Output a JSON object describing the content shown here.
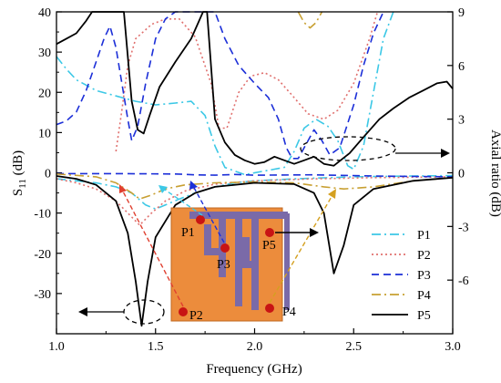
{
  "chart_data": {
    "type": "line",
    "xlabel": "Frequency (GHz)",
    "ylabel_left": "S11 (dB)",
    "ylabel_left_main": "S",
    "ylabel_left_sub": "11",
    "ylabel_left_unit": " (dB)",
    "ylabel_right": "Axial ratio  (dB)",
    "xlim": [
      1.0,
      3.0
    ],
    "ylim_left": [
      -40,
      40
    ],
    "ylim_right": [
      -9,
      9
    ],
    "xticks": [
      "1.0",
      "1.5",
      "2.0",
      "2.5",
      "3.0"
    ],
    "yticks_left": [
      "40",
      "30",
      "20",
      "10",
      "0",
      "-10",
      "-20",
      "-30"
    ],
    "yticks_right": [
      "9",
      "6",
      "3",
      "0",
      "-3",
      "-6"
    ],
    "legend_placement": "bottom-right",
    "grid": false,
    "series": [
      {
        "name": "P1",
        "color": "#3cc8e6",
        "style": "dash-dot",
        "s11": [
          [
            1.0,
            -1.5
          ],
          [
            1.1,
            -2
          ],
          [
            1.2,
            -2.5
          ],
          [
            1.3,
            -3.5
          ],
          [
            1.38,
            -5
          ],
          [
            1.45,
            -8
          ],
          [
            1.5,
            -9
          ],
          [
            1.55,
            -8
          ],
          [
            1.62,
            -6.5
          ],
          [
            1.7,
            -5
          ],
          [
            1.8,
            -3.5
          ],
          [
            1.9,
            -2.5
          ],
          [
            2.0,
            -2
          ],
          [
            2.2,
            -1.5
          ],
          [
            2.5,
            -1
          ],
          [
            2.8,
            -0.8
          ],
          [
            3.0,
            -0.7
          ]
        ],
        "ar": [
          [
            1.0,
            6.5
          ],
          [
            1.05,
            5.8
          ],
          [
            1.1,
            5.2
          ],
          [
            1.2,
            4.6
          ],
          [
            1.3,
            4.3
          ],
          [
            1.4,
            4.0
          ],
          [
            1.5,
            3.8
          ],
          [
            1.6,
            3.9
          ],
          [
            1.68,
            4.0
          ],
          [
            1.75,
            3.2
          ],
          [
            1.8,
            1.5
          ],
          [
            1.85,
            0.3
          ],
          [
            1.95,
            -0.1
          ],
          [
            2.05,
            0.1
          ],
          [
            2.15,
            0.3
          ],
          [
            2.2,
            1.2
          ],
          [
            2.25,
            2.5
          ],
          [
            2.31,
            3.0
          ],
          [
            2.37,
            2.6
          ],
          [
            2.42,
            1.8
          ],
          [
            2.47,
            0.4
          ],
          [
            2.5,
            0.2
          ],
          [
            2.55,
            1.5
          ],
          [
            2.6,
            4.5
          ],
          [
            2.65,
            7.5
          ],
          [
            2.7,
            9
          ]
        ]
      },
      {
        "name": "P2",
        "color": "#e0706e",
        "style": "dot",
        "s11": [
          [
            1.0,
            -1.5
          ],
          [
            1.1,
            -2.5
          ],
          [
            1.2,
            -4
          ],
          [
            1.3,
            -7
          ],
          [
            1.38,
            -11
          ],
          [
            1.42,
            -13
          ],
          [
            1.48,
            -10
          ],
          [
            1.55,
            -7
          ],
          [
            1.65,
            -4.5
          ],
          [
            1.8,
            -2.8
          ],
          [
            2.0,
            -2
          ],
          [
            2.3,
            -1.5
          ],
          [
            2.6,
            -1.2
          ],
          [
            3.0,
            -1
          ]
        ],
        "ar": [
          [
            1.3,
            1.2
          ],
          [
            1.33,
            3.5
          ],
          [
            1.36,
            6.0
          ],
          [
            1.4,
            7.5
          ],
          [
            1.48,
            8.3
          ],
          [
            1.55,
            8.6
          ],
          [
            1.62,
            8.6
          ],
          [
            1.7,
            7.6
          ],
          [
            1.78,
            5.0
          ],
          [
            1.82,
            2.5
          ],
          [
            1.86,
            2.5
          ],
          [
            1.92,
            4.5
          ],
          [
            1.98,
            5.4
          ],
          [
            2.05,
            5.6
          ],
          [
            2.12,
            5.2
          ],
          [
            2.2,
            4.2
          ],
          [
            2.27,
            3.3
          ],
          [
            2.35,
            3.0
          ],
          [
            2.42,
            3.5
          ],
          [
            2.5,
            5.0
          ],
          [
            2.58,
            7.5
          ],
          [
            2.62,
            9
          ]
        ]
      },
      {
        "name": "P3",
        "color": "#1c2fd8",
        "style": "dash",
        "s11": [
          [
            1.0,
            -0.2
          ],
          [
            1.3,
            -0.2
          ],
          [
            1.6,
            -0.3
          ],
          [
            1.7,
            -0.5
          ],
          [
            1.8,
            -0.6
          ],
          [
            1.9,
            -0.4
          ],
          [
            2.0,
            -0.6
          ],
          [
            2.3,
            -0.5
          ],
          [
            2.6,
            -0.8
          ],
          [
            2.8,
            -0.9
          ],
          [
            3.0,
            -1
          ]
        ],
        "ar": [
          [
            1.0,
            2.7
          ],
          [
            1.05,
            2.9
          ],
          [
            1.1,
            3.4
          ],
          [
            1.15,
            4.6
          ],
          [
            1.2,
            6.2
          ],
          [
            1.24,
            7.5
          ],
          [
            1.27,
            8.2
          ],
          [
            1.3,
            7.0
          ],
          [
            1.33,
            5.0
          ],
          [
            1.36,
            3.0
          ],
          [
            1.38,
            1.8
          ],
          [
            1.41,
            2.6
          ],
          [
            1.45,
            5.0
          ],
          [
            1.5,
            7.5
          ],
          [
            1.55,
            8.6
          ],
          [
            1.6,
            9
          ],
          [
            1.8,
            9
          ],
          [
            1.85,
            7.5
          ],
          [
            1.92,
            6.0
          ],
          [
            2.0,
            5.0
          ],
          [
            2.07,
            4.2
          ],
          [
            2.12,
            3.0
          ],
          [
            2.16,
            1.4
          ],
          [
            2.19,
            0.8
          ],
          [
            2.22,
            0.8
          ],
          [
            2.27,
            1.8
          ],
          [
            2.3,
            2.4
          ],
          [
            2.34,
            1.8
          ],
          [
            2.38,
            1.0
          ],
          [
            2.43,
            1.4
          ],
          [
            2.5,
            3.8
          ],
          [
            2.55,
            6.0
          ],
          [
            2.6,
            7.8
          ],
          [
            2.65,
            9
          ]
        ]
      },
      {
        "name": "P4",
        "color": "#c8a032",
        "style": "dash-dot",
        "s11": [
          [
            1.0,
            -0.3
          ],
          [
            1.2,
            -1
          ],
          [
            1.3,
            -2.5
          ],
          [
            1.38,
            -5
          ],
          [
            1.42,
            -6.5
          ],
          [
            1.48,
            -5.5
          ],
          [
            1.55,
            -4
          ],
          [
            1.65,
            -3
          ],
          [
            1.8,
            -2.5
          ],
          [
            2.0,
            -2.3
          ],
          [
            2.2,
            -2.5
          ],
          [
            2.35,
            -3.5
          ],
          [
            2.45,
            -4
          ],
          [
            2.6,
            -3.5
          ],
          [
            2.8,
            -2
          ],
          [
            3.0,
            -1.2
          ]
        ],
        "ar": [
          [
            2.22,
            9
          ],
          [
            2.25,
            8.4
          ],
          [
            2.28,
            8.1
          ],
          [
            2.31,
            8.4
          ],
          [
            2.34,
            9
          ]
        ]
      },
      {
        "name": "P5",
        "color": "#000000",
        "style": "solid",
        "s11": [
          [
            1.0,
            -0.8
          ],
          [
            1.1,
            -1.5
          ],
          [
            1.2,
            -3
          ],
          [
            1.3,
            -7
          ],
          [
            1.36,
            -15
          ],
          [
            1.4,
            -27
          ],
          [
            1.43,
            -38
          ],
          [
            1.46,
            -27
          ],
          [
            1.5,
            -16
          ],
          [
            1.6,
            -8
          ],
          [
            1.7,
            -5
          ],
          [
            1.8,
            -3.5
          ],
          [
            2.0,
            -2.5
          ],
          [
            2.2,
            -2.8
          ],
          [
            2.3,
            -5
          ],
          [
            2.35,
            -10
          ],
          [
            2.4,
            -25
          ],
          [
            2.45,
            -18
          ],
          [
            2.5,
            -8
          ],
          [
            2.6,
            -4
          ],
          [
            2.8,
            -2
          ],
          [
            3.0,
            -1.2
          ]
        ],
        "ar": [
          [
            1.0,
            7.2
          ],
          [
            1.05,
            7.5
          ],
          [
            1.1,
            7.8
          ],
          [
            1.15,
            8.5
          ],
          [
            1.18,
            9
          ],
          [
            1.34,
            9
          ],
          [
            1.36,
            6.5
          ],
          [
            1.38,
            4.0
          ],
          [
            1.41,
            2.4
          ],
          [
            1.44,
            2.2
          ],
          [
            1.47,
            3.2
          ],
          [
            1.52,
            4.8
          ],
          [
            1.6,
            6.2
          ],
          [
            1.68,
            7.5
          ],
          [
            1.72,
            8.5
          ],
          [
            1.74,
            9
          ],
          [
            1.76,
            9
          ],
          [
            1.8,
            3.0
          ],
          [
            1.85,
            1.7
          ],
          [
            1.9,
            1.0
          ],
          [
            1.95,
            0.7
          ],
          [
            2.0,
            0.5
          ],
          [
            2.05,
            0.6
          ],
          [
            2.1,
            0.9
          ],
          [
            2.15,
            0.7
          ],
          [
            2.2,
            0.5
          ],
          [
            2.25,
            0.7
          ],
          [
            2.3,
            0.9
          ],
          [
            2.35,
            0.5
          ],
          [
            2.4,
            0.4
          ],
          [
            2.48,
            1.1
          ],
          [
            2.55,
            2.0
          ],
          [
            2.63,
            3.0
          ],
          [
            2.7,
            3.6
          ],
          [
            2.78,
            4.2
          ],
          [
            2.85,
            4.6
          ],
          [
            2.92,
            5.0
          ],
          [
            2.97,
            5.1
          ],
          [
            3.0,
            4.7
          ]
        ]
      }
    ],
    "inset_labels": [
      "P1",
      "P2",
      "P3",
      "P4",
      "P5"
    ],
    "colors": {
      "inset_board": "#ec8c3c",
      "inset_strip": "#7a6aa8",
      "inset_feed_point": "#c81414",
      "axis": "#000000"
    }
  }
}
